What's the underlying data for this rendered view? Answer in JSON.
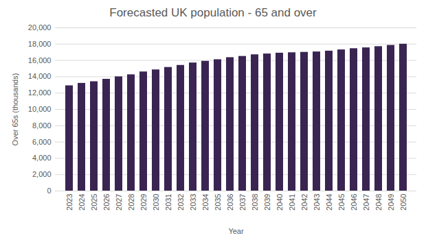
{
  "chart_data": {
    "type": "bar",
    "title": "Forecasted UK population - 65 and over",
    "x_label": "Year",
    "y_label": "Over 65s (thousands)",
    "categories": [
      "2023",
      "2024",
      "2025",
      "2026",
      "2027",
      "2028",
      "2029",
      "2030",
      "2031",
      "2032",
      "2033",
      "2034",
      "2035",
      "2036",
      "2037",
      "2038",
      "2039",
      "2040",
      "2041",
      "2042",
      "2043",
      "2044",
      "2045",
      "2046",
      "2047",
      "2048",
      "2049",
      "2050"
    ],
    "values": [
      12900,
      13200,
      13400,
      13700,
      14000,
      14250,
      14600,
      14850,
      15150,
      15400,
      15700,
      15900,
      16100,
      16350,
      16500,
      16700,
      16800,
      16900,
      16950,
      17000,
      17050,
      17150,
      17300,
      17450,
      17550,
      17700,
      17850,
      18000
    ],
    "color": "#3a2552",
    "ylim": [
      0,
      20000
    ],
    "yticks": [
      0,
      {
        "value": 2000,
        "label": "2,000"
      },
      {
        "value": 4000,
        "label": "4,000"
      },
      {
        "value": 6000,
        "label": "6,000"
      },
      {
        "value": 8000,
        "label": "8,000"
      },
      {
        "value": 10000,
        "label": "10,000"
      },
      {
        "value": 12000,
        "label": "12,000"
      },
      {
        "value": 14000,
        "label": "14,000"
      },
      {
        "value": 16000,
        "label": "16,000"
      },
      {
        "value": 18000,
        "label": "18,000"
      },
      {
        "value": 20000,
        "label": "20,000"
      }
    ],
    "grid": true
  }
}
